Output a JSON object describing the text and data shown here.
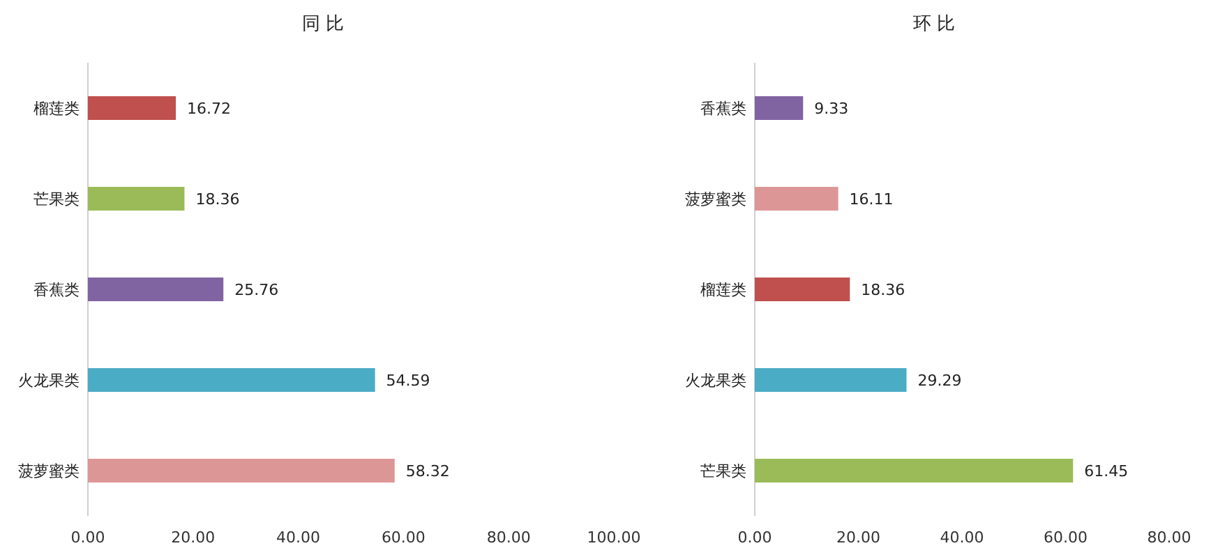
{
  "chart_data": [
    {
      "type": "bar",
      "orientation": "horizontal",
      "title": "同 比",
      "categories": [
        "榴莲类",
        "芒果类",
        "香蕉类",
        "火龙果类",
        "菠萝蜜类"
      ],
      "values": [
        16.72,
        18.36,
        25.76,
        54.59,
        58.32
      ],
      "colors": [
        "#c0504d",
        "#9bbb59",
        "#8064a2",
        "#4bacc6",
        "#dd9696"
      ],
      "xlim": [
        0,
        100
      ],
      "xticks": [
        {
          "value": 0,
          "label": "0.00"
        },
        {
          "value": 20,
          "label": "20.00"
        },
        {
          "value": 40,
          "label": "40.00"
        },
        {
          "value": 60,
          "label": "60.00"
        },
        {
          "value": 80,
          "label": "80.00"
        },
        {
          "value": 100,
          "label": "100.00"
        }
      ],
      "data_labels": true
    },
    {
      "type": "bar",
      "orientation": "horizontal",
      "title": "环 比",
      "categories": [
        "香蕉类",
        "菠萝蜜类",
        "榴莲类",
        "火龙果类",
        "芒果类"
      ],
      "values": [
        9.33,
        16.11,
        18.36,
        29.29,
        61.45
      ],
      "colors": [
        "#8064a2",
        "#dd9696",
        "#c0504d",
        "#4bacc6",
        "#9bbb59"
      ],
      "xlim": [
        0,
        80
      ],
      "xticks": [
        {
          "value": 0,
          "label": "0.00"
        },
        {
          "value": 20,
          "label": "20.00"
        },
        {
          "value": 40,
          "label": "40.00"
        },
        {
          "value": 60,
          "label": "60.00"
        },
        {
          "value": 80,
          "label": "80.00"
        }
      ],
      "data_labels": true
    }
  ]
}
